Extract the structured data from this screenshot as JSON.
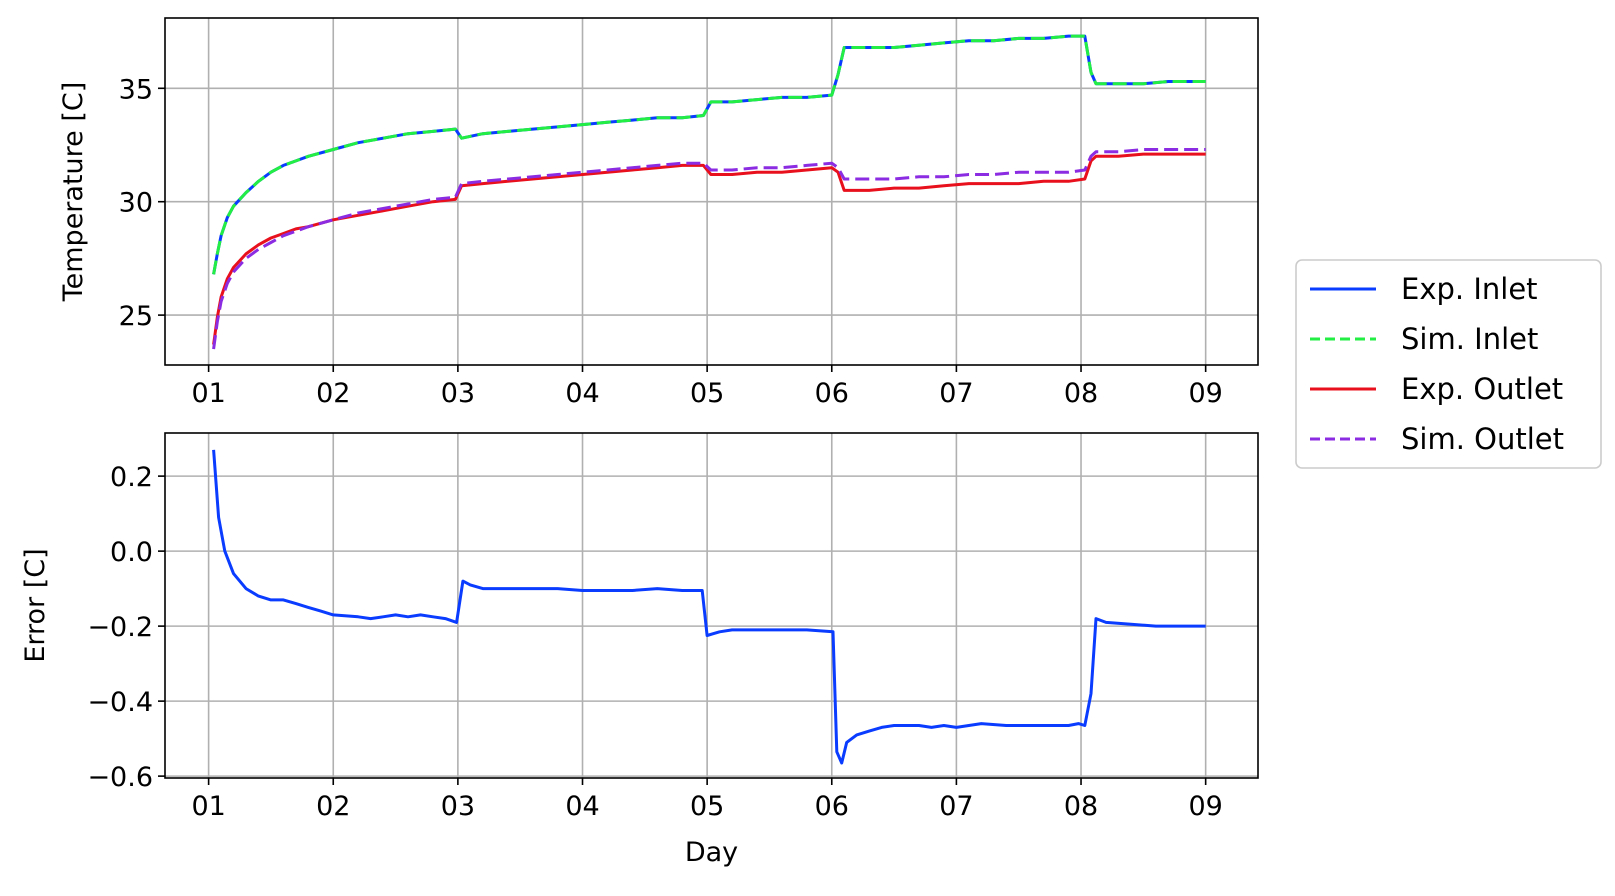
{
  "chart_data": [
    {
      "type": "line",
      "ylabel": "Temperature [C]",
      "xlabel": "",
      "x_ticks": [
        "01",
        "02",
        "03",
        "04",
        "05",
        "06",
        "07",
        "08",
        "09"
      ],
      "xlim": [
        0.65,
        9.42
      ],
      "ylim": [
        22.8,
        38.1
      ],
      "y_ticks": [
        "25",
        "30",
        "35"
      ],
      "y_tick_values": [
        25,
        30,
        35
      ],
      "grid": true,
      "legend_position": "right, outside",
      "x": [
        1.04,
        1.07,
        1.1,
        1.15,
        1.2,
        1.3,
        1.4,
        1.5,
        1.6,
        1.7,
        1.8,
        2.0,
        2.2,
        2.4,
        2.6,
        2.8,
        2.98,
        3.03,
        3.2,
        3.4,
        3.6,
        3.8,
        4.0,
        4.2,
        4.4,
        4.6,
        4.8,
        4.97,
        5.03,
        5.2,
        5.4,
        5.6,
        5.8,
        6.0,
        6.05,
        6.1,
        6.3,
        6.5,
        6.7,
        6.9,
        7.1,
        7.3,
        7.5,
        7.7,
        7.9,
        8.03,
        8.08,
        8.12,
        8.3,
        8.5,
        8.7,
        9.0
      ],
      "series": [
        {
          "name": "Exp. Inlet",
          "color": "#0a3cff",
          "dash": "solid",
          "values": [
            26.8,
            27.7,
            28.5,
            29.3,
            29.8,
            30.4,
            30.9,
            31.3,
            31.6,
            31.8,
            32.0,
            32.3,
            32.6,
            32.8,
            33.0,
            33.1,
            33.2,
            32.8,
            33.0,
            33.1,
            33.2,
            33.3,
            33.4,
            33.5,
            33.6,
            33.7,
            33.7,
            33.8,
            34.4,
            34.4,
            34.5,
            34.6,
            34.6,
            34.7,
            35.6,
            36.8,
            36.8,
            36.8,
            36.9,
            37.0,
            37.1,
            37.1,
            37.2,
            37.2,
            37.3,
            37.3,
            35.7,
            35.2,
            35.2,
            35.2,
            35.3,
            35.3
          ]
        },
        {
          "name": "Sim. Inlet",
          "color": "#22ee44",
          "dash": "dashed",
          "values": [
            26.8,
            27.7,
            28.5,
            29.3,
            29.8,
            30.4,
            30.9,
            31.3,
            31.6,
            31.8,
            32.0,
            32.3,
            32.6,
            32.8,
            33.0,
            33.1,
            33.2,
            32.8,
            33.0,
            33.1,
            33.2,
            33.3,
            33.4,
            33.5,
            33.6,
            33.7,
            33.7,
            33.8,
            34.4,
            34.4,
            34.5,
            34.6,
            34.6,
            34.7,
            35.6,
            36.8,
            36.8,
            36.8,
            36.9,
            37.0,
            37.1,
            37.1,
            37.2,
            37.2,
            37.3,
            37.3,
            35.7,
            35.2,
            35.2,
            35.2,
            35.3,
            35.3
          ]
        },
        {
          "name": "Exp. Outlet",
          "color": "#e8101c",
          "dash": "solid",
          "values": [
            23.7,
            24.9,
            25.8,
            26.6,
            27.1,
            27.7,
            28.1,
            28.4,
            28.6,
            28.8,
            28.9,
            29.2,
            29.4,
            29.6,
            29.8,
            30.0,
            30.1,
            30.7,
            30.8,
            30.9,
            31.0,
            31.1,
            31.2,
            31.3,
            31.4,
            31.5,
            31.6,
            31.6,
            31.2,
            31.2,
            31.3,
            31.3,
            31.4,
            31.5,
            31.3,
            30.5,
            30.5,
            30.6,
            30.6,
            30.7,
            30.8,
            30.8,
            30.8,
            30.9,
            30.9,
            31.0,
            31.8,
            32.0,
            32.0,
            32.1,
            32.1,
            32.1
          ]
        },
        {
          "name": "Sim. Outlet",
          "color": "#8b2be2",
          "dash": "dashed",
          "values": [
            23.5,
            24.7,
            25.6,
            26.4,
            26.9,
            27.5,
            27.9,
            28.2,
            28.5,
            28.7,
            28.9,
            29.2,
            29.5,
            29.7,
            29.9,
            30.1,
            30.2,
            30.8,
            30.9,
            31.0,
            31.1,
            31.2,
            31.3,
            31.4,
            31.5,
            31.6,
            31.7,
            31.7,
            31.4,
            31.4,
            31.5,
            31.5,
            31.6,
            31.7,
            31.5,
            31.0,
            31.0,
            31.0,
            31.1,
            31.1,
            31.2,
            31.2,
            31.3,
            31.3,
            31.3,
            31.4,
            32.0,
            32.2,
            32.2,
            32.3,
            32.3,
            32.3
          ]
        }
      ]
    },
    {
      "type": "line",
      "ylabel": "Error [C]",
      "xlabel": "Day",
      "x_ticks": [
        "01",
        "02",
        "03",
        "04",
        "05",
        "06",
        "07",
        "08",
        "09"
      ],
      "xlim": [
        0.65,
        9.42
      ],
      "ylim": [
        -0.605,
        0.315
      ],
      "y_ticks": [
        "0.2",
        "0.0",
        "−0.2",
        "−0.4",
        "−0.6"
      ],
      "y_tick_values": [
        0.2,
        0.0,
        -0.2,
        -0.4,
        -0.6
      ],
      "grid": true,
      "x": [
        1.04,
        1.08,
        1.13,
        1.2,
        1.3,
        1.4,
        1.5,
        1.6,
        1.7,
        1.8,
        1.9,
        2.0,
        2.2,
        2.3,
        2.4,
        2.5,
        2.6,
        2.7,
        2.8,
        2.9,
        2.99,
        3.04,
        3.1,
        3.2,
        3.4,
        3.6,
        3.8,
        4.0,
        4.2,
        4.4,
        4.6,
        4.8,
        4.96,
        5.0,
        5.1,
        5.2,
        5.4,
        5.6,
        5.8,
        6.01,
        6.04,
        6.08,
        6.12,
        6.2,
        6.3,
        6.4,
        6.5,
        6.6,
        6.7,
        6.8,
        6.9,
        7.0,
        7.2,
        7.4,
        7.6,
        7.8,
        7.9,
        7.98,
        8.03,
        8.08,
        8.12,
        8.2,
        8.4,
        8.6,
        8.8,
        9.0
      ],
      "series": [
        {
          "name": "",
          "color": "#0a3cff",
          "dash": "solid",
          "values": [
            0.27,
            0.09,
            0.0,
            -0.06,
            -0.1,
            -0.12,
            -0.13,
            -0.13,
            -0.14,
            -0.15,
            -0.16,
            -0.17,
            -0.175,
            -0.18,
            -0.175,
            -0.17,
            -0.175,
            -0.17,
            -0.175,
            -0.18,
            -0.19,
            -0.08,
            -0.09,
            -0.1,
            -0.1,
            -0.1,
            -0.1,
            -0.105,
            -0.105,
            -0.105,
            -0.1,
            -0.105,
            -0.105,
            -0.225,
            -0.215,
            -0.21,
            -0.21,
            -0.21,
            -0.21,
            -0.215,
            -0.535,
            -0.565,
            -0.51,
            -0.49,
            -0.48,
            -0.47,
            -0.465,
            -0.465,
            -0.465,
            -0.47,
            -0.465,
            -0.47,
            -0.46,
            -0.465,
            -0.465,
            -0.465,
            -0.465,
            -0.46,
            -0.465,
            -0.38,
            -0.18,
            -0.19,
            -0.195,
            -0.2,
            -0.2,
            -0.2
          ]
        }
      ]
    }
  ]
}
